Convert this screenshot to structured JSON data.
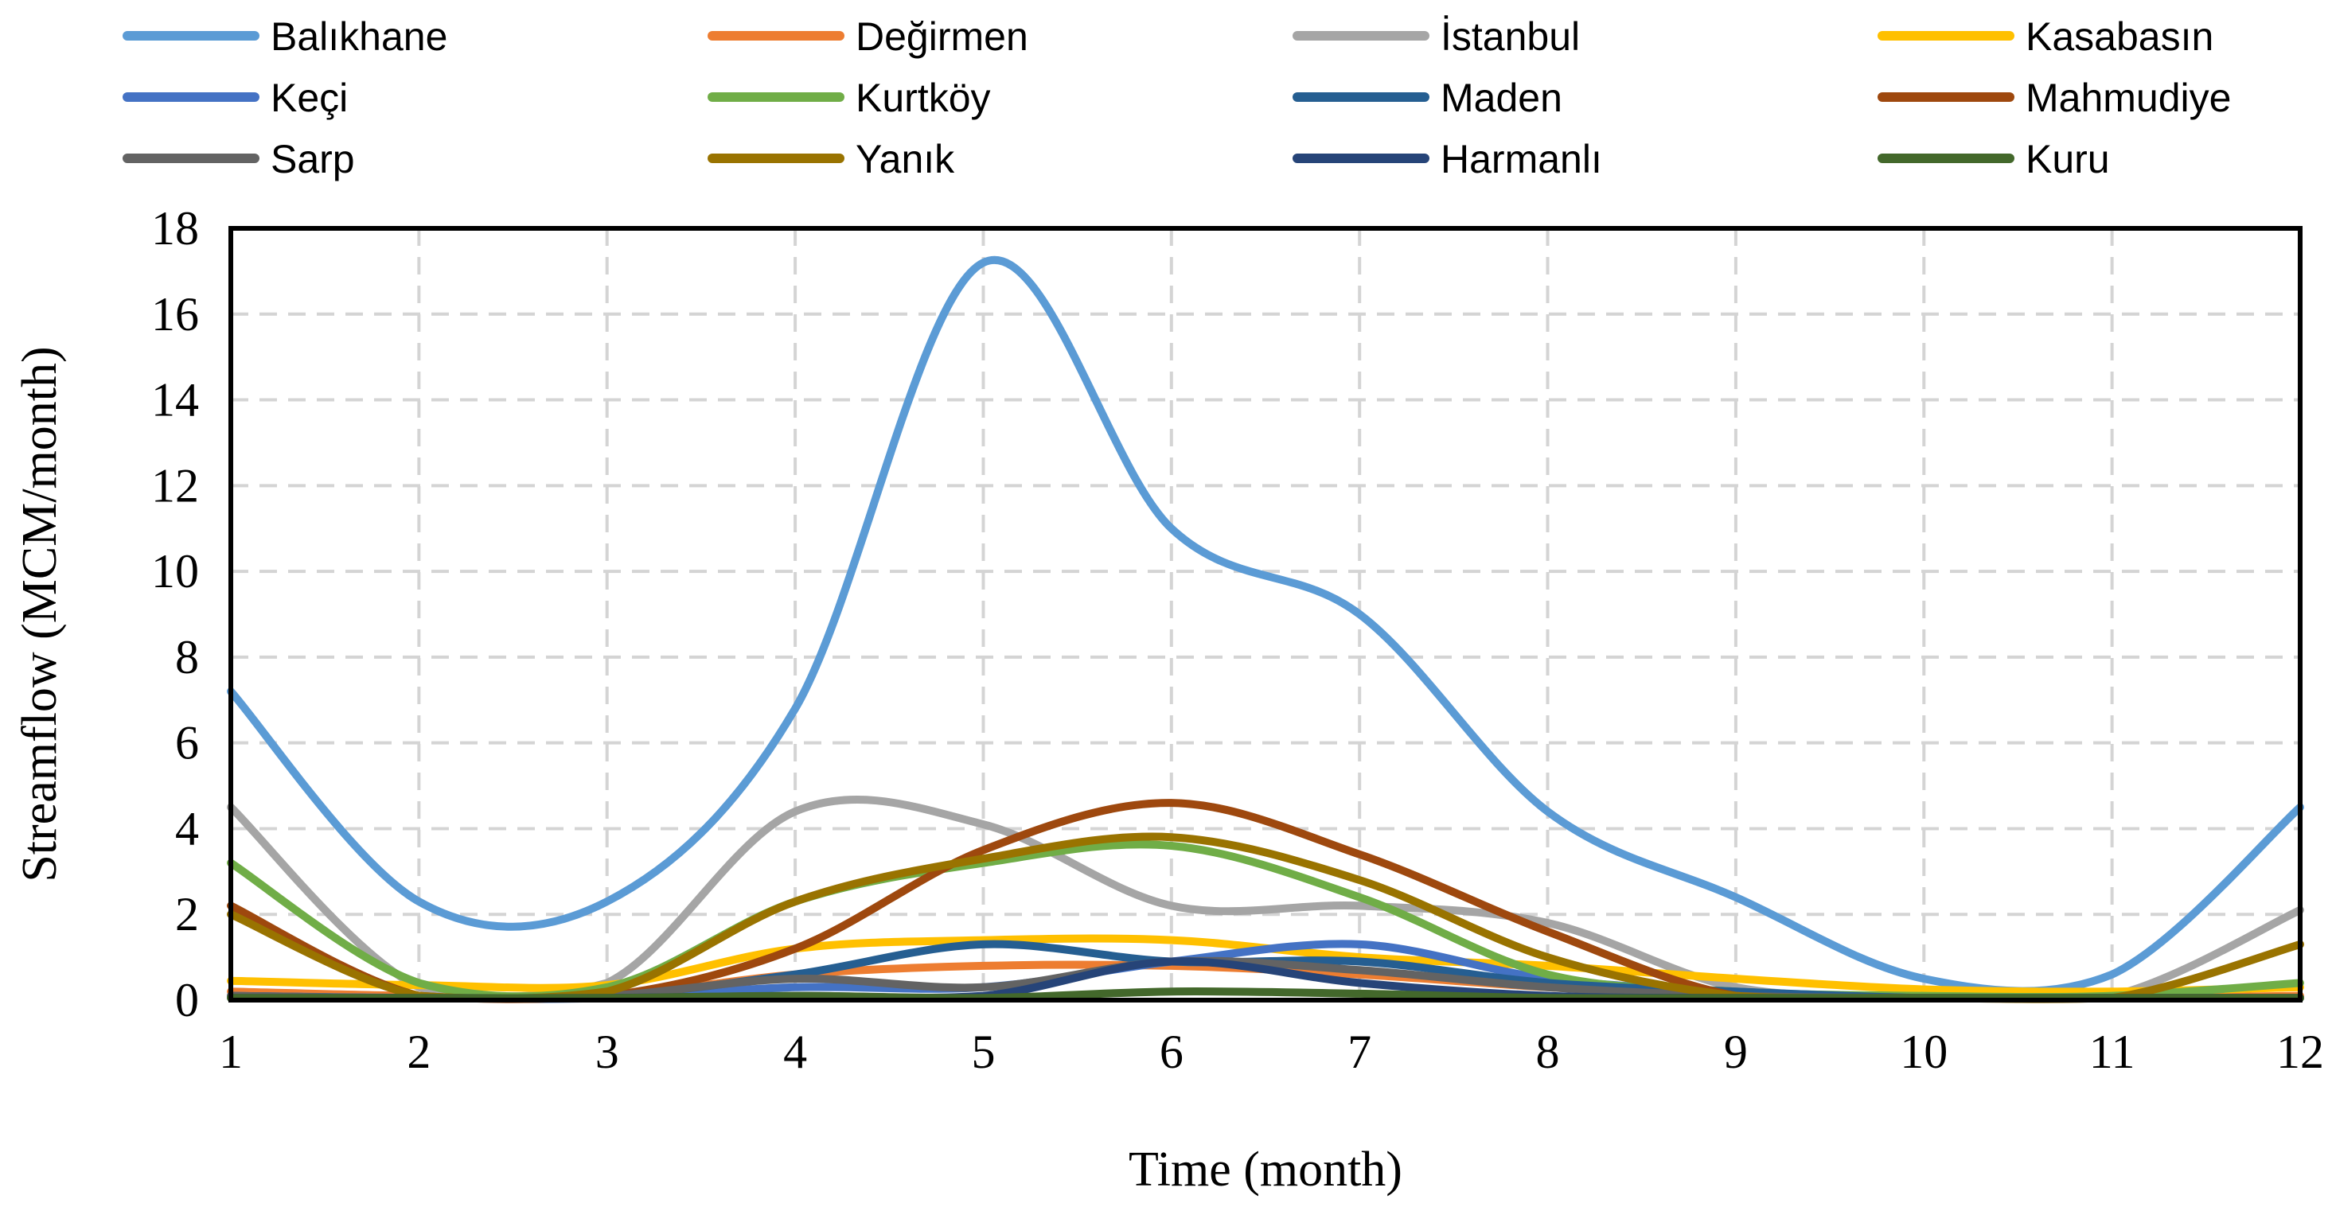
{
  "chart_data": {
    "type": "line",
    "title": "",
    "xlabel": "Time (month)",
    "ylabel": "Streamflow (MCM/month)",
    "xlim": [
      1,
      12
    ],
    "ylim": [
      0,
      18
    ],
    "x_ticks": [
      "1",
      "2",
      "3",
      "4",
      "5",
      "6",
      "7",
      "8",
      "9",
      "10",
      "11",
      "12"
    ],
    "y_ticks": [
      "0",
      "2",
      "4",
      "6",
      "8",
      "10",
      "12",
      "14",
      "16",
      "18"
    ],
    "grid": true,
    "legend_position": "top",
    "x": [
      1,
      2,
      3,
      4,
      5,
      6,
      7,
      8,
      9,
      10,
      11,
      12
    ],
    "series": [
      {
        "name": "Balıkhane",
        "color": "#5B9BD5",
        "values": [
          7.2,
          2.3,
          2.3,
          6.8,
          17.2,
          11.0,
          9.0,
          4.4,
          2.4,
          0.5,
          0.6,
          4.5
        ]
      },
      {
        "name": "Değirmen",
        "color": "#ED7D31",
        "values": [
          0.2,
          0.1,
          0.1,
          0.6,
          0.8,
          0.8,
          0.6,
          0.3,
          0.1,
          0.05,
          0.05,
          0.1
        ]
      },
      {
        "name": "İstanbul",
        "color": "#A5A5A5",
        "values": [
          4.5,
          0.3,
          0.4,
          4.4,
          4.1,
          2.2,
          2.2,
          1.8,
          0.3,
          0.1,
          0.1,
          2.1
        ]
      },
      {
        "name": "Kasabasın",
        "color": "#FFC000",
        "values": [
          0.45,
          0.35,
          0.35,
          1.2,
          1.4,
          1.4,
          1.0,
          0.8,
          0.5,
          0.25,
          0.2,
          0.3
        ]
      },
      {
        "name": "Keçi",
        "color": "#4472C4",
        "values": [
          0.1,
          0.05,
          0.05,
          0.3,
          0.3,
          0.9,
          1.3,
          0.5,
          0.2,
          0.05,
          0.05,
          0.05
        ]
      },
      {
        "name": "Kurtköy",
        "color": "#70AD47",
        "values": [
          3.2,
          0.4,
          0.3,
          2.3,
          3.2,
          3.6,
          2.4,
          0.6,
          0.2,
          0.1,
          0.1,
          0.4
        ]
      },
      {
        "name": "Maden",
        "color": "#255E91",
        "values": [
          0.1,
          0.05,
          0.1,
          0.6,
          1.3,
          0.9,
          0.9,
          0.4,
          0.2,
          0.05,
          0.05,
          0.05
        ]
      },
      {
        "name": "Mahmudiye",
        "color": "#9E480E",
        "values": [
          2.2,
          0.1,
          0.1,
          1.2,
          3.5,
          4.6,
          3.4,
          1.6,
          0.1,
          0.05,
          0.05,
          0.05
        ]
      },
      {
        "name": "Sarp",
        "color": "#636363",
        "values": [
          0.1,
          0.05,
          0.1,
          0.5,
          0.3,
          0.9,
          0.7,
          0.3,
          0.1,
          0.05,
          0.05,
          0.05
        ]
      },
      {
        "name": "Yanık",
        "color": "#997300",
        "values": [
          2.0,
          0.1,
          0.2,
          2.3,
          3.3,
          3.8,
          2.8,
          1.0,
          0.1,
          0.05,
          0.05,
          1.3
        ]
      },
      {
        "name": "Harmanlı",
        "color": "#264478",
        "values": [
          0.05,
          0.05,
          0.05,
          0.1,
          0.1,
          0.9,
          0.4,
          0.1,
          0.05,
          0.05,
          0.05,
          0.05
        ]
      },
      {
        "name": "Kuru",
        "color": "#43682B",
        "values": [
          0.05,
          0.05,
          0.05,
          0.1,
          0.05,
          0.2,
          0.15,
          0.05,
          0.05,
          0.05,
          0.05,
          0.05
        ]
      }
    ]
  }
}
